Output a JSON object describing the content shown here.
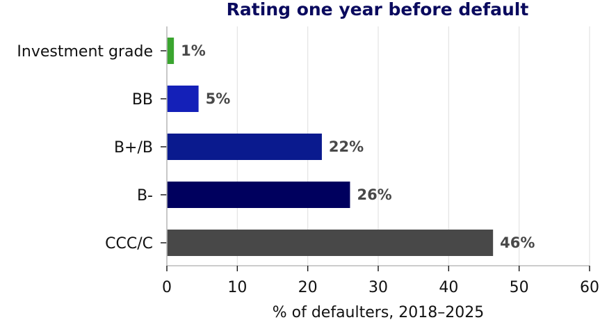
{
  "chart_data": {
    "type": "bar",
    "orientation": "horizontal",
    "title": "Rating one year before default",
    "xlabel": "% of defaulters, 2018–2025",
    "ylabel": "",
    "categories": [
      "Investment grade",
      "BB",
      "B+/B",
      "B-",
      "CCC/C"
    ],
    "values": [
      1,
      4.5,
      22,
      26,
      46.3
    ],
    "data_labels": [
      "1%",
      "5%",
      "22%",
      "26%",
      "46%"
    ],
    "bar_colors": [
      "#3aa52f",
      "#1420b8",
      "#0a1a8e",
      "#00005e",
      "#484848"
    ],
    "xlim": [
      0,
      60
    ],
    "xticks": [
      0,
      10,
      20,
      30,
      40,
      50,
      60
    ],
    "xtick_labels": [
      "0",
      "10",
      "20",
      "30",
      "40",
      "50",
      "60"
    ],
    "grid": "vertical",
    "legend": "none"
  },
  "colors": {
    "title": "#0a0a5e",
    "data_label": "#484848",
    "grid": "#e3e3e3",
    "axis": "#bbbbbb"
  }
}
